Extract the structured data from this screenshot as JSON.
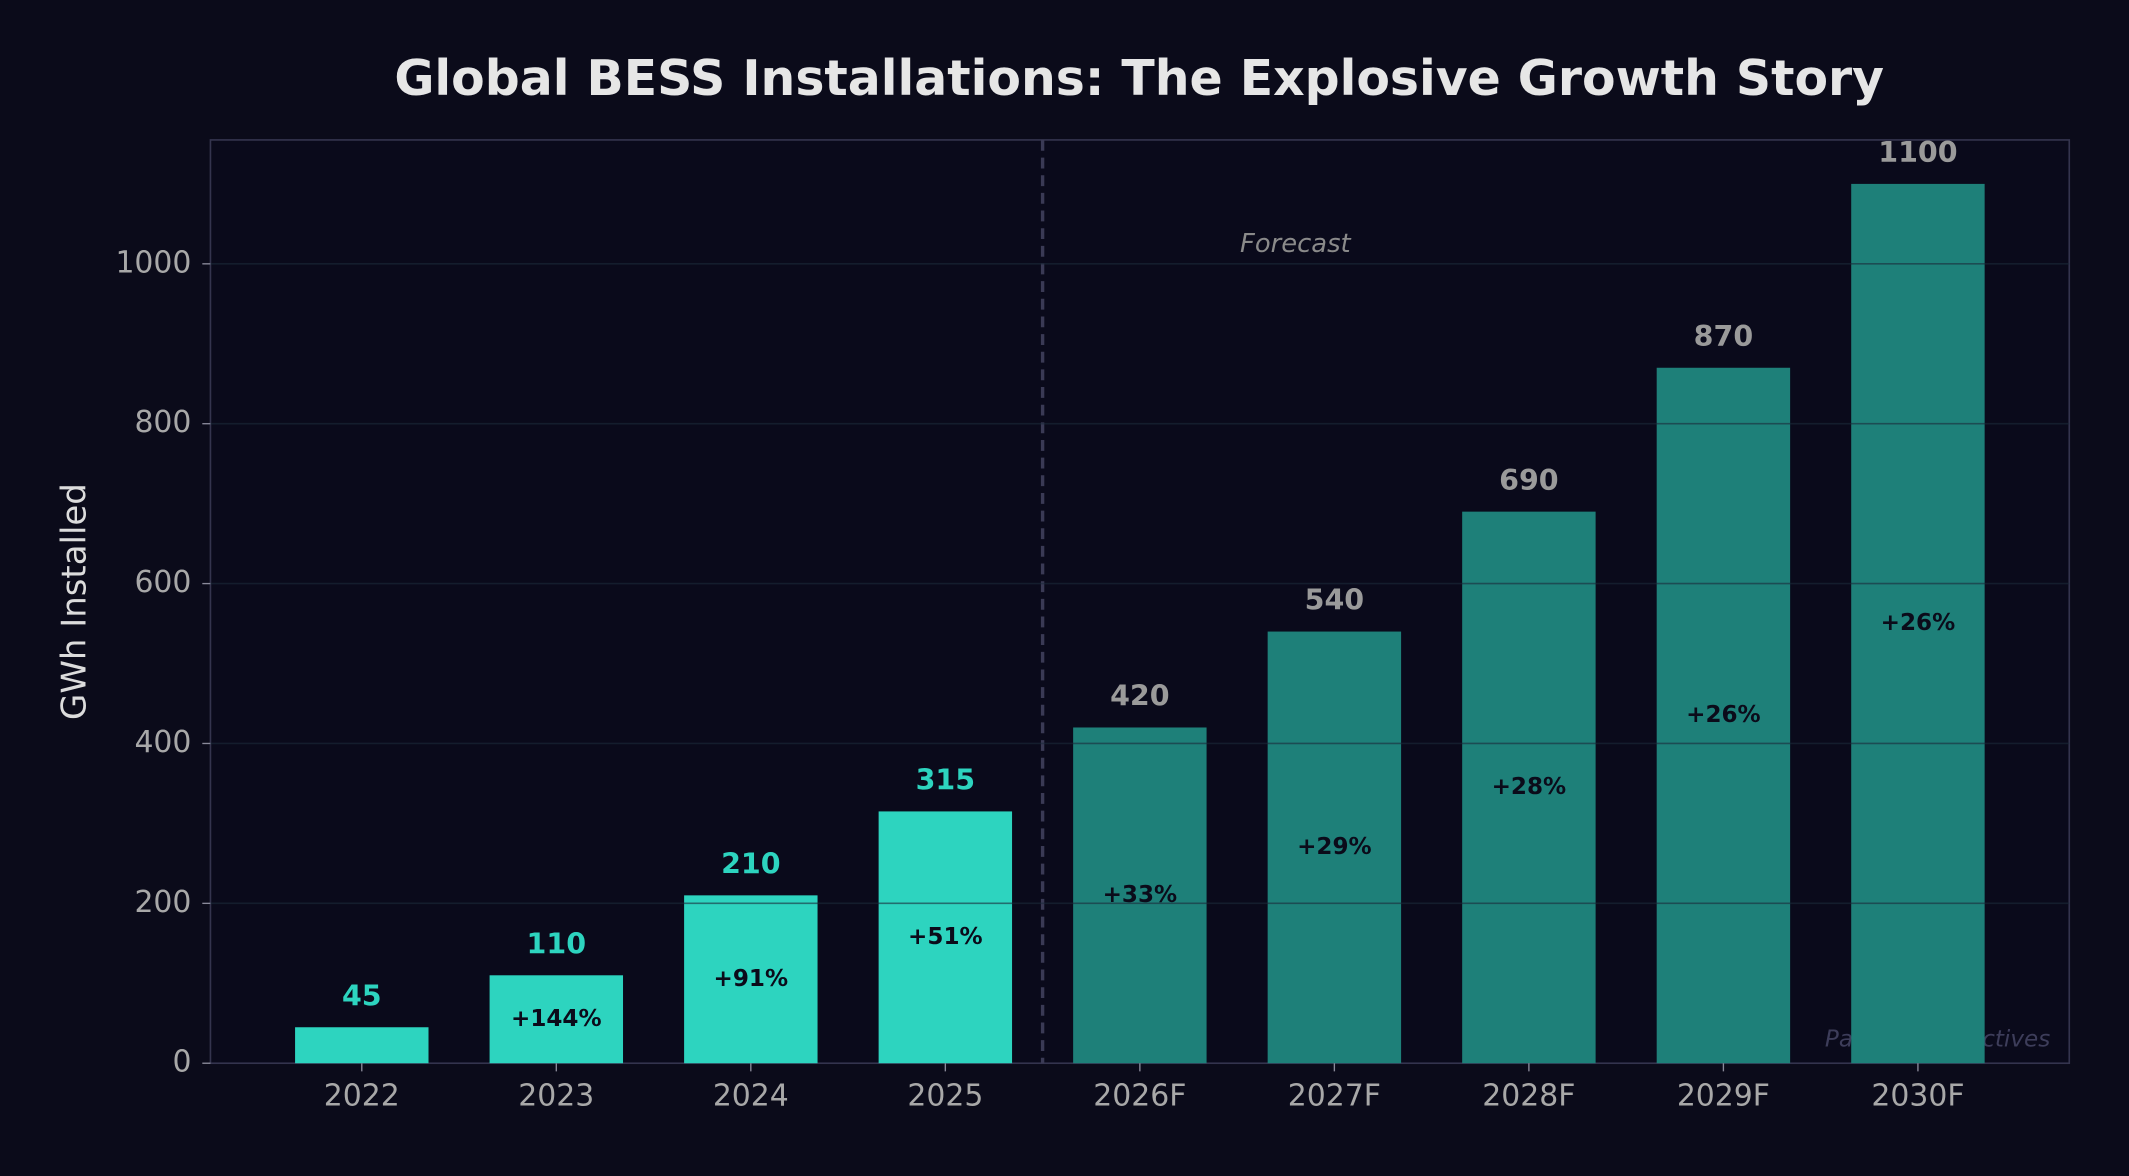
{
  "chart_data": {
    "type": "bar",
    "title": "Global BESS Installations: The Explosive Growth Story",
    "y_label": "GWh Installed",
    "categories": [
      "2022",
      "2023",
      "2024",
      "2025",
      "2026F",
      "2027F",
      "2028F",
      "2029F",
      "2030F"
    ],
    "values": [
      45,
      110,
      210,
      315,
      420,
      540,
      690,
      870,
      1100
    ],
    "growth_labels": [
      null,
      "+144%",
      "+91%",
      "+51%",
      "+33%",
      "+29%",
      "+28%",
      "+26%",
      "+26%"
    ],
    "colors": [
      "#2dd4bf",
      "#2dd4bf",
      "#2dd4bf",
      "#2dd4bf",
      "#1e8079",
      "#1e8079",
      "#1e8079",
      "#1e8079",
      "#1e8079"
    ],
    "value_label_colors": [
      "#2dd4bf",
      "#2dd4bf",
      "#2dd4bf",
      "#2dd4bf",
      "#9a9a9a",
      "#9a9a9a",
      "#9a9a9a",
      "#9a9a9a",
      "#9a9a9a"
    ],
    "annotation": "Forecast",
    "watermark": "Panda Perspectives",
    "ylim": [
      0,
      1155
    ],
    "yticks": [
      0,
      200,
      400,
      600,
      800,
      1000
    ],
    "grid": true
  }
}
